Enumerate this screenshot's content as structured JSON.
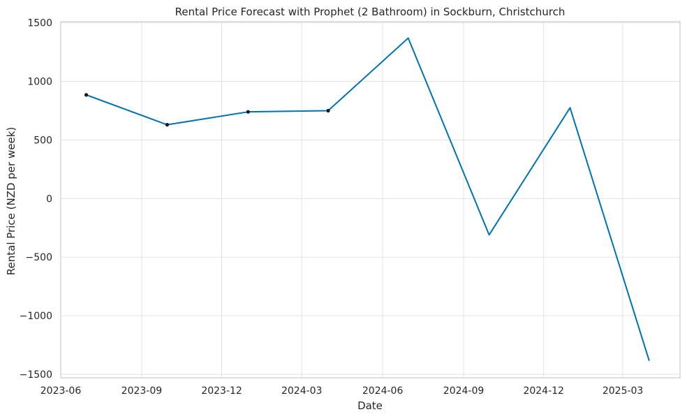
{
  "chart_data": {
    "type": "line",
    "title": "Rental Price Forecast with Prophet (2 Bathroom) in Sockburn, Christchurch",
    "xlabel": "Date",
    "ylabel": "Rental Price (NZD per week)",
    "xlim": [
      "2023-06-01",
      "2025-05-05"
    ],
    "ylim": [
      -1530,
      1510
    ],
    "x_ticks": [
      "2023-06",
      "2023-09",
      "2023-12",
      "2024-03",
      "2024-06",
      "2024-09",
      "2024-12",
      "2025-03"
    ],
    "y_ticks": [
      1500,
      1000,
      500,
      0,
      -500,
      -1000,
      -1500
    ],
    "y_tick_labels": [
      "1500",
      "1000",
      "500",
      "0",
      "−500",
      "−1000",
      "−1500"
    ],
    "grid": true,
    "colors": {
      "forecast_line": "#0072B2",
      "observed_points": "#0b1a26",
      "grid": "#e3e3e3",
      "axes_edge": "#cccccc"
    },
    "series": [
      {
        "role": "forecast",
        "x": [
          "2023-06-30",
          "2023-09-30",
          "2023-12-31",
          "2024-03-31",
          "2024-06-30",
          "2024-09-30",
          "2024-12-31",
          "2025-03-31"
        ],
        "y": [
          885,
          630,
          740,
          750,
          1370,
          -310,
          775,
          -1385
        ]
      },
      {
        "role": "observed",
        "x": [
          "2023-06-30",
          "2023-09-30",
          "2023-12-31",
          "2024-03-31"
        ],
        "y": [
          885,
          630,
          740,
          750
        ]
      }
    ]
  }
}
